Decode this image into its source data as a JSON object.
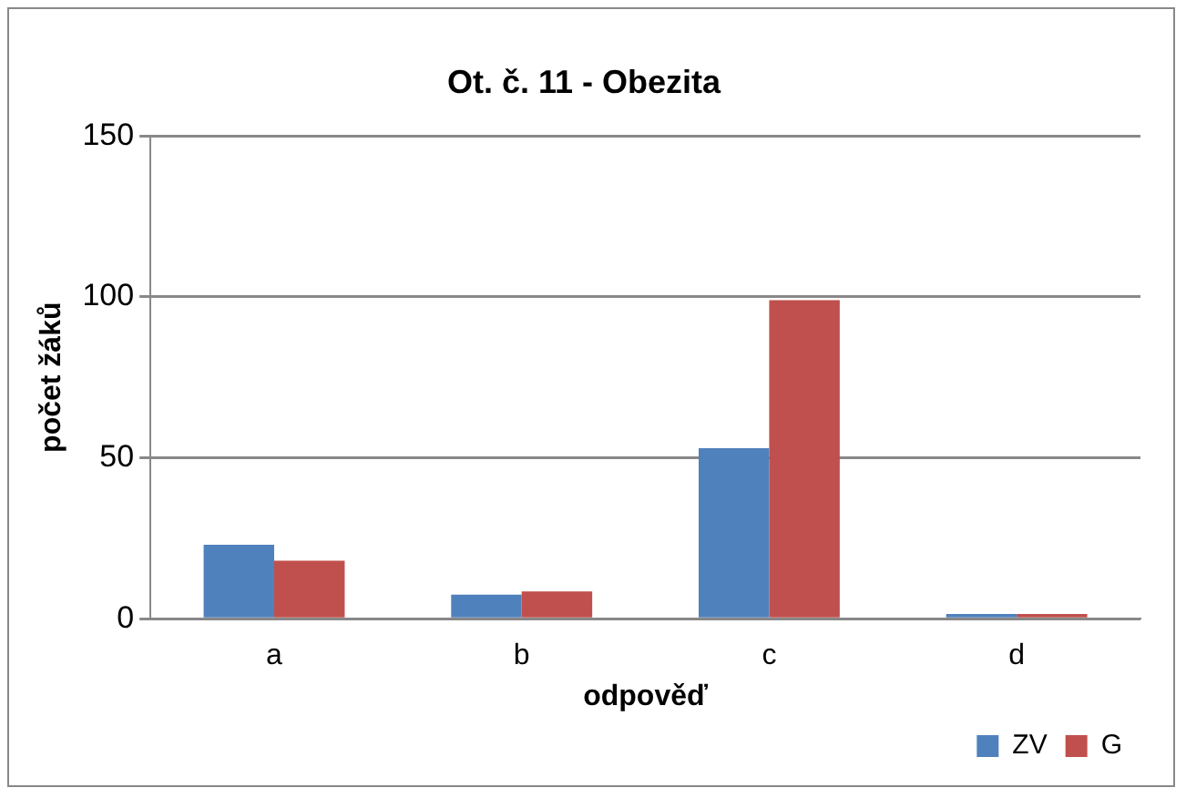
{
  "chart_data": {
    "type": "bar",
    "title": "Ot. č. 11 - Obezita",
    "xlabel": "odpověď",
    "ylabel": "počet žáků",
    "categories": [
      "a",
      "b",
      "c",
      "d"
    ],
    "series": [
      {
        "name": "ZV",
        "color": "#4f81bd",
        "values": [
          23,
          7.5,
          53,
          1.5
        ]
      },
      {
        "name": "G",
        "color": "#c0504d",
        "values": [
          18,
          8.5,
          99,
          1.5
        ]
      }
    ],
    "ylim": [
      0,
      150
    ],
    "yticks": [
      0,
      50,
      100,
      150
    ],
    "grid": "y",
    "legend": "bottom right"
  }
}
